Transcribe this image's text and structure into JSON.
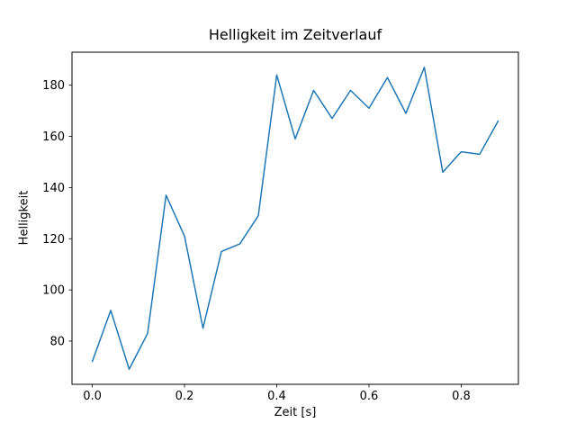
{
  "figure": {
    "background": "#ffffff",
    "spine_color": "#000000",
    "text_color": "#000000"
  },
  "chart_data": {
    "type": "line",
    "title": "Helligkeit im Zeitverlauf",
    "xlabel": "Zeit [s]",
    "ylabel": "Helligkeit",
    "line_color": "#1f77b4",
    "line_width": 1.5,
    "grid": false,
    "legend": false,
    "x": [
      0.0,
      0.04,
      0.08,
      0.12,
      0.16,
      0.2,
      0.24,
      0.28,
      0.32,
      0.36,
      0.4,
      0.44,
      0.48,
      0.52,
      0.56,
      0.6,
      0.64,
      0.68,
      0.72,
      0.76,
      0.8,
      0.84,
      0.88
    ],
    "y": [
      72,
      92,
      69,
      83,
      137,
      121,
      85,
      115,
      118,
      129,
      184,
      159,
      178,
      167,
      178,
      171,
      183,
      169,
      187,
      146,
      154,
      153,
      166
    ],
    "xlim": [
      -0.044,
      0.924
    ],
    "ylim": [
      63.1,
      192.9
    ],
    "xticks": {
      "values": [
        0.0,
        0.2,
        0.4,
        0.6,
        0.8
      ],
      "labels": [
        "0.0",
        "0.2",
        "0.4",
        "0.6",
        "0.8"
      ]
    },
    "yticks": {
      "values": [
        80,
        100,
        120,
        140,
        160,
        180
      ],
      "labels": [
        "80",
        "100",
        "120",
        "140",
        "160",
        "180"
      ]
    }
  }
}
